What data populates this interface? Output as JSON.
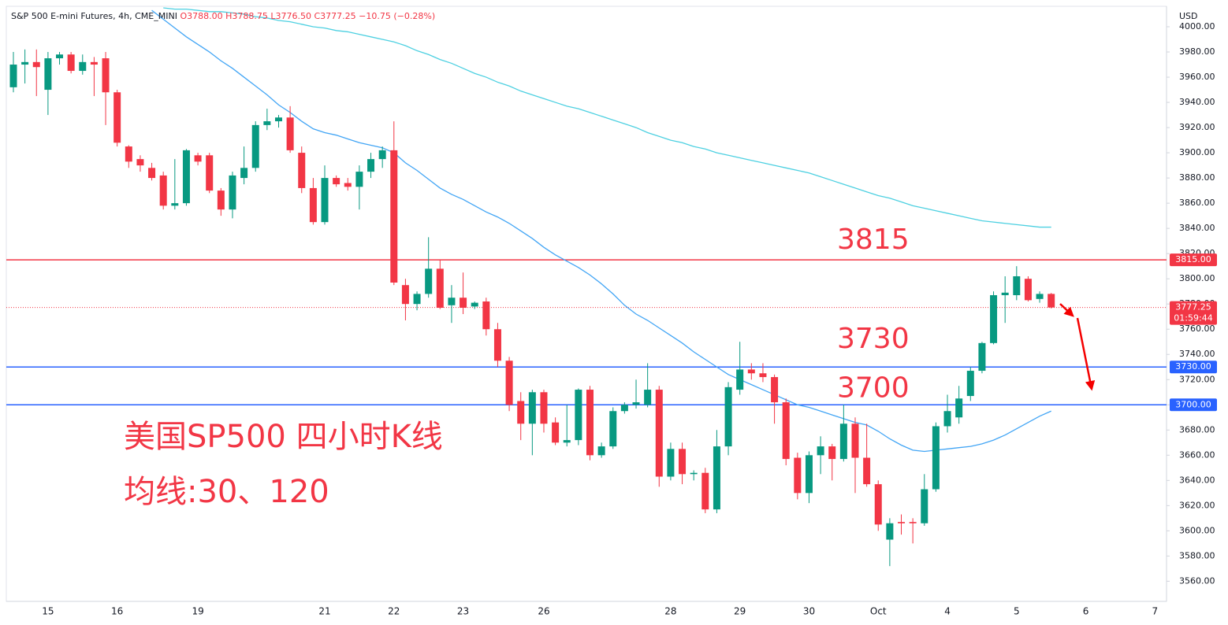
{
  "chart_data": {
    "type": "candlestick",
    "header": {
      "symbol": "S&P 500 E-mini Futures, 4h, CME_MINI",
      "open": "O3788.00",
      "high": "H3788.75",
      "low": "L3776.50",
      "close": "C3777.25",
      "change": "−10.75 (−0.28%)"
    },
    "currency": "USD",
    "annotations": [
      "美国SP500 四小时K线",
      "均线:30、120"
    ],
    "categories": [
      null,
      null,
      null,
      "15",
      null,
      null,
      null,
      null,
      null,
      "16",
      null,
      null,
      null,
      null,
      null,
      null,
      "19",
      null,
      null,
      null,
      null,
      null,
      null,
      null,
      null,
      null,
      null,
      "21",
      null,
      null,
      null,
      null,
      null,
      "22",
      null,
      null,
      null,
      null,
      null,
      "23",
      null,
      null,
      null,
      null,
      null,
      null,
      "26",
      null,
      null,
      null,
      null,
      null,
      null,
      null,
      null,
      null,
      null,
      "28",
      null,
      null,
      null,
      null,
      null,
      "29",
      null,
      null,
      null,
      null,
      null,
      "30",
      null,
      null,
      null,
      null,
      null,
      "Oct",
      null,
      null,
      null,
      null,
      null,
      "4",
      null,
      null,
      null,
      null,
      null,
      "5",
      null,
      null,
      null,
      null,
      null,
      "6",
      null,
      null,
      null,
      null,
      null,
      "7"
    ],
    "open": [
      3952,
      3970,
      3972,
      3950,
      3975,
      3978,
      3965,
      3972,
      3975,
      3948,
      3905,
      3895,
      3888,
      3882,
      3858,
      3860,
      3898,
      3898,
      3870,
      3855,
      3880,
      3888,
      3922,
      3925,
      3928,
      3900,
      3872,
      3845,
      3880,
      3876,
      3873,
      3885,
      3895,
      3902,
      3795,
      3780,
      3788,
      3808,
      3779,
      3785,
      3778,
      3782,
      3760,
      3735,
      3703,
      3685,
      3710,
      3686,
      3670,
      3672,
      3712,
      3660,
      3667,
      3695,
      3700,
      3700,
      3712,
      3643,
      3665,
      3645,
      3646,
      3617,
      3667,
      3712,
      3728,
      3725,
      3722,
      3702,
      3658,
      3630,
      3660,
      3667,
      3657,
      3685,
      3658,
      3637,
      3593,
      3607,
      3607,
      3606,
      3633,
      3683,
      3690,
      3707,
      3727,
      3749,
      3787,
      3787,
      3800,
      3784,
      3788,
      null,
      null,
      null,
      null,
      null,
      null,
      null,
      null,
      null
    ],
    "high": [
      3980,
      3982,
      3982,
      3980,
      3980,
      3980,
      3978,
      3976,
      3980,
      3950,
      3906,
      3898,
      3892,
      3885,
      3895,
      3903,
      3900,
      3900,
      3872,
      3885,
      3905,
      3925,
      3935,
      3930,
      3937,
      3905,
      3880,
      3890,
      3882,
      3880,
      3890,
      3900,
      3905,
      3925,
      3800,
      3790,
      3833,
      3815,
      3795,
      3805,
      3782,
      3785,
      3765,
      3738,
      3710,
      3712,
      3712,
      3690,
      3700,
      3713,
      3715,
      3670,
      3698,
      3702,
      3720,
      3733,
      3715,
      3670,
      3670,
      3648,
      3650,
      3680,
      3718,
      3750,
      3733,
      3733,
      3724,
      3705,
      3662,
      3663,
      3675,
      3669,
      3700,
      3690,
      3685,
      3640,
      3610,
      3613,
      3610,
      3645,
      3686,
      3708,
      3715,
      3730,
      3750,
      3790,
      3802,
      3810,
      3802,
      3790,
      3788.75,
      null,
      null,
      null,
      null,
      null,
      null,
      null,
      null,
      null
    ],
    "low": [
      3948,
      3955,
      3945,
      3930,
      3970,
      3963,
      3962,
      3945,
      3922,
      3905,
      3888,
      3885,
      3878,
      3855,
      3855,
      3858,
      3890,
      3868,
      3850,
      3848,
      3875,
      3885,
      3918,
      3920,
      3900,
      3868,
      3843,
      3843,
      3873,
      3870,
      3855,
      3880,
      3888,
      3795,
      3767,
      3775,
      3785,
      3776,
      3765,
      3772,
      3776,
      3755,
      3730,
      3695,
      3672,
      3660,
      3678,
      3668,
      3667,
      3668,
      3656,
      3658,
      3665,
      3693,
      3697,
      3698,
      3635,
      3640,
      3637,
      3640,
      3614,
      3614,
      3660,
      3708,
      3720,
      3718,
      3685,
      3652,
      3625,
      3622,
      3645,
      3640,
      3655,
      3630,
      3635,
      3600,
      3572,
      3597,
      3590,
      3604,
      3631,
      3678,
      3685,
      3703,
      3725,
      3748,
      3765,
      3783,
      3782,
      3781,
      3776.5,
      null,
      null,
      null,
      null,
      null,
      null,
      null,
      null,
      null
    ],
    "close": [
      3970,
      3972,
      3968,
      3975,
      3978,
      3965,
      3972,
      3970,
      3948,
      3908,
      3893,
      3890,
      3880,
      3858,
      3860,
      3902,
      3893,
      3870,
      3855,
      3882,
      3888,
      3922,
      3925,
      3928,
      3902,
      3872,
      3845,
      3880,
      3875,
      3873,
      3885,
      3895,
      3902,
      3797,
      3780,
      3788,
      3808,
      3777,
      3785,
      3777,
      3781,
      3760,
      3735,
      3700,
      3685,
      3710,
      3685,
      3670,
      3672,
      3712,
      3660,
      3667,
      3695,
      3700,
      3702,
      3712,
      3643,
      3665,
      3645,
      3646,
      3617,
      3667,
      3714,
      3728,
      3725,
      3722,
      3702,
      3657,
      3630,
      3660,
      3667,
      3657,
      3685,
      3658,
      3637,
      3605,
      3606,
      3606,
      3606,
      3633,
      3683,
      3695,
      3705,
      3727,
      3749,
      3787,
      3789,
      3802,
      3783,
      3788,
      3777.25,
      null,
      null,
      null,
      null,
      null,
      null,
      null,
      null,
      null
    ],
    "up_color": "#089981",
    "down_color": "#f23645",
    "series": [
      {
        "name": "MA30",
        "color": "#42a5f5",
        "values": [
          null,
          null,
          null,
          null,
          null,
          null,
          null,
          null,
          null,
          null,
          null,
          null,
          4013,
          4006,
          3999,
          3992,
          3986,
          3980,
          3973,
          3967,
          3960,
          3953,
          3946,
          3938,
          3932,
          3925,
          3919,
          3916,
          3914,
          3911,
          3908,
          3906,
          3904,
          3900,
          3892,
          3886,
          3879,
          3872,
          3867,
          3863,
          3858,
          3853,
          3849,
          3844,
          3838,
          3832,
          3825,
          3819,
          3814,
          3809,
          3803,
          3796,
          3788,
          3779,
          3772,
          3767,
          3761,
          3755,
          3749,
          3742,
          3736,
          3730,
          3724,
          3720,
          3716,
          3712,
          3708,
          3704,
          3700,
          3698,
          3695,
          3692,
          3689,
          3686,
          3684,
          3679,
          3673,
          3668,
          3664,
          3663,
          3664,
          3665,
          3666,
          3667,
          3669,
          3672,
          3676,
          3681,
          3686,
          3691,
          3695,
          null,
          null,
          null,
          null,
          null,
          null,
          null,
          null,
          null
        ]
      },
      {
        "name": "MA120",
        "color": "#4dd0e1",
        "values": [
          null,
          null,
          null,
          null,
          null,
          null,
          null,
          null,
          null,
          null,
          null,
          null,
          null,
          4015,
          4014,
          4014,
          4013,
          4012,
          4012,
          4011,
          4010,
          4008,
          4007,
          4005,
          4004,
          4002,
          4000,
          3999,
          3997,
          3996,
          3994,
          3992,
          3990,
          3988,
          3985,
          3981,
          3978,
          3974,
          3971,
          3967,
          3963,
          3960,
          3956,
          3953,
          3949,
          3946,
          3943,
          3940,
          3937,
          3935,
          3932,
          3929,
          3926,
          3923,
          3920,
          3916,
          3913,
          3910,
          3908,
          3905,
          3903,
          3900,
          3898,
          3896,
          3894,
          3892,
          3890,
          3888,
          3886,
          3884,
          3881,
          3878,
          3875,
          3872,
          3869,
          3866,
          3864,
          3861,
          3858,
          3856,
          3854,
          3852,
          3850,
          3848,
          3846,
          3845,
          3844,
          3843,
          3842,
          3841,
          3841,
          null,
          null,
          null,
          null,
          null,
          null,
          null,
          null,
          null
        ]
      }
    ],
    "levels": [
      {
        "value": 3815,
        "label": "3815.00",
        "color": "#f23645"
      },
      {
        "value": 3730,
        "label": "3730.00",
        "color": "#2962ff"
      },
      {
        "value": 3700,
        "label": "3700.00",
        "color": "#2962ff"
      }
    ],
    "last_price": {
      "value": 3777.25,
      "countdown": "01:59:44",
      "color": "#f23645"
    },
    "ylim": [
      3544,
      4015
    ],
    "yticks": [
      {
        "value": 3560,
        "label": "3560.00"
      },
      {
        "value": 3580,
        "label": "3580.00"
      },
      {
        "value": 3600,
        "label": "3600.00"
      },
      {
        "value": 3620,
        "label": "3620.00"
      },
      {
        "value": 3640,
        "label": "3640.00"
      },
      {
        "value": 3660,
        "label": "3660.00"
      },
      {
        "value": 3680,
        "label": "3680.00"
      },
      {
        "value": 3700,
        "label": "3700.00"
      },
      {
        "value": 3720,
        "label": "3720.00"
      },
      {
        "value": 3740,
        "label": "3740.00"
      },
      {
        "value": 3760,
        "label": "3760.00"
      },
      {
        "value": 3780,
        "label": "3780.00"
      },
      {
        "value": 3800,
        "label": "3800.00"
      },
      {
        "value": 3820,
        "label": "3820.00"
      },
      {
        "value": 3840,
        "label": "3840.00"
      },
      {
        "value": 3860,
        "label": "3860.00"
      },
      {
        "value": 3880,
        "label": "3880.00"
      },
      {
        "value": 3900,
        "label": "3900.00"
      },
      {
        "value": 3920,
        "label": "3920.00"
      },
      {
        "value": 3940,
        "label": "3940.00"
      },
      {
        "value": 3960,
        "label": "3960.00"
      },
      {
        "value": 3980,
        "label": "3980.00"
      },
      {
        "value": 4000,
        "label": "4000.00"
      }
    ],
    "grid": false
  }
}
